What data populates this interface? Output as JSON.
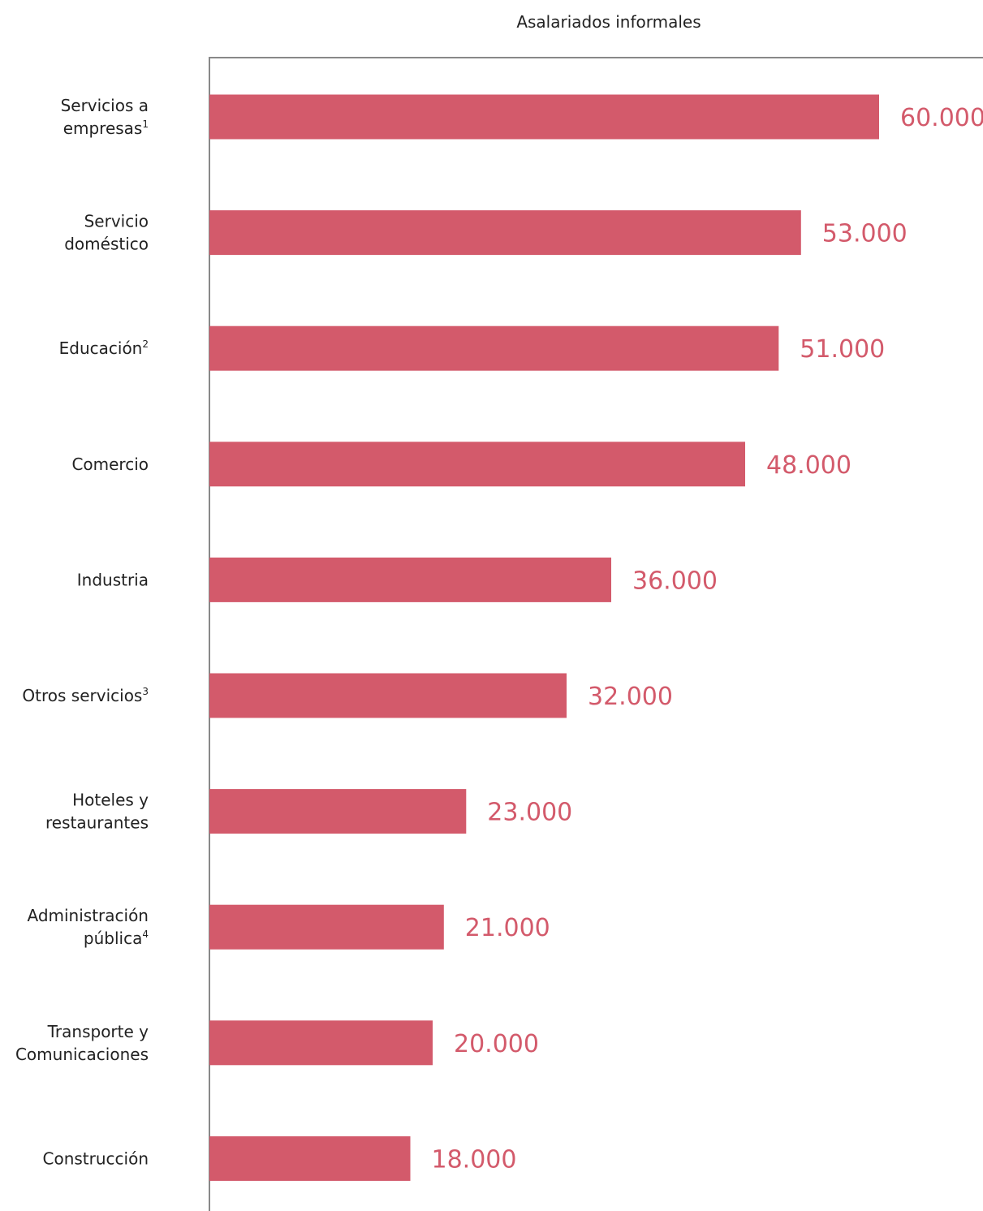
{
  "chart_data": {
    "type": "bar",
    "orientation": "horizontal",
    "title": "Asalariados informales",
    "bar_color": "#d35a6b",
    "categories": [
      {
        "lines": [
          "Servicios a",
          "empresas"
        ],
        "sup": "1"
      },
      {
        "lines": [
          "Servicio",
          "doméstico"
        ],
        "sup": ""
      },
      {
        "lines": [
          "Educación"
        ],
        "sup": "2"
      },
      {
        "lines": [
          "Comercio"
        ],
        "sup": ""
      },
      {
        "lines": [
          "Industria"
        ],
        "sup": ""
      },
      {
        "lines": [
          "Otros servicios"
        ],
        "sup": "3"
      },
      {
        "lines": [
          "Hoteles y",
          "restaurantes"
        ],
        "sup": ""
      },
      {
        "lines": [
          "Administración",
          "pública"
        ],
        "sup": "4"
      },
      {
        "lines": [
          "Transporte y",
          "Comunicaciones"
        ],
        "sup": ""
      },
      {
        "lines": [
          "Construcción"
        ],
        "sup": ""
      }
    ],
    "values": [
      60000,
      53000,
      51000,
      48000,
      36000,
      32000,
      23000,
      21000,
      20000,
      18000
    ],
    "value_labels": [
      "60.000",
      "53.000",
      "51.000",
      "48.000",
      "36.000",
      "32.000",
      "23.000",
      "21.000",
      "20.000",
      "18.000"
    ],
    "xlim": [
      0,
      60000
    ],
    "grid": false
  }
}
